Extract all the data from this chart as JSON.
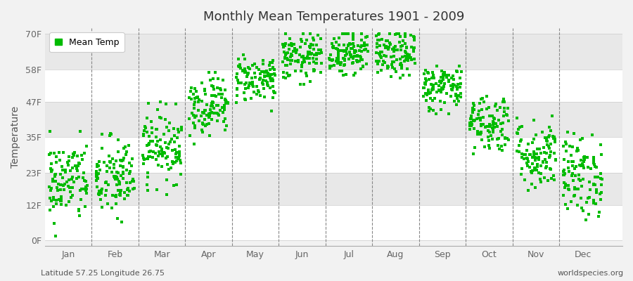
{
  "title": "Monthly Mean Temperatures 1901 - 2009",
  "ylabel": "Temperature",
  "subtitle_left": "Latitude 57.25 Longitude 26.75",
  "subtitle_right": "worldspecies.org",
  "dot_color": "#00bb00",
  "background_color": "#f2f2f2",
  "plot_bg_odd": "#ffffff",
  "plot_bg_even": "#e8e8e8",
  "legend_label": "Mean Temp",
  "yticks": [
    0,
    12,
    23,
    35,
    47,
    58,
    70
  ],
  "ytick_labels": [
    "0F",
    "12F",
    "23F",
    "35F",
    "47F",
    "58F",
    "70F"
  ],
  "months": [
    "Jan",
    "Feb",
    "Mar",
    "Apr",
    "May",
    "Jun",
    "Jul",
    "Aug",
    "Sep",
    "Oct",
    "Nov",
    "Dec"
  ],
  "num_years": 109,
  "seed": 42,
  "monthly_mean_f": [
    20,
    21,
    32,
    46,
    55,
    62,
    64,
    63,
    52,
    40,
    29,
    22
  ],
  "monthly_std_f": [
    7,
    7,
    6,
    5,
    4,
    4,
    4,
    4,
    4,
    5,
    6,
    7
  ],
  "monthly_min_f": [
    -2,
    0,
    14,
    32,
    44,
    53,
    56,
    54,
    43,
    29,
    17,
    7
  ],
  "monthly_max_f": [
    37,
    37,
    47,
    57,
    63,
    70,
    70,
    70,
    61,
    53,
    46,
    37
  ]
}
